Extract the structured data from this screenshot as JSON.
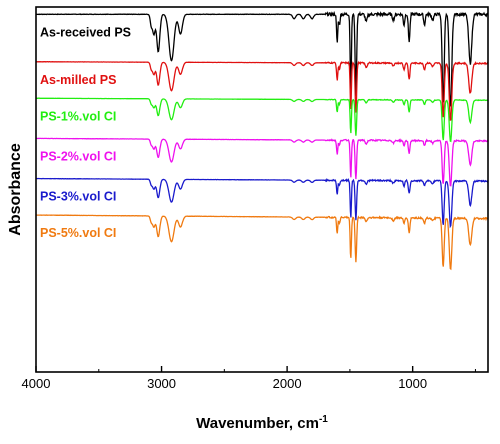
{
  "chart_data": {
    "type": "line",
    "xlabel": "Wavenumber, cm",
    "xlabel_superscript": "-1",
    "ylabel": "Absorbance",
    "xlim": [
      4000,
      400
    ],
    "x_reversed": true,
    "ylim": [
      0,
      1
    ],
    "yticks_shown": false,
    "grid": false,
    "x_ticks": [
      4000,
      3000,
      2000,
      1000
    ],
    "peaks": [
      {
        "x": 3082,
        "depth": 0.12,
        "width": 8
      },
      {
        "x": 3061,
        "depth": 0.22,
        "width": 10
      },
      {
        "x": 3026,
        "depth": 0.42,
        "width": 12
      },
      {
        "x": 2921,
        "depth": 0.52,
        "width": 20
      },
      {
        "x": 2849,
        "depth": 0.22,
        "width": 15
      },
      {
        "x": 1944,
        "depth": 0.05,
        "width": 12
      },
      {
        "x": 1871,
        "depth": 0.05,
        "width": 12
      },
      {
        "x": 1801,
        "depth": 0.05,
        "width": 12
      },
      {
        "x": 1601,
        "depth": 0.32,
        "width": 5
      },
      {
        "x": 1583,
        "depth": 0.12,
        "width": 5
      },
      {
        "x": 1493,
        "depth": 0.85,
        "width": 5
      },
      {
        "x": 1452,
        "depth": 0.9,
        "width": 6
      },
      {
        "x": 1370,
        "depth": 0.08,
        "width": 8
      },
      {
        "x": 1154,
        "depth": 0.06,
        "width": 8
      },
      {
        "x": 1069,
        "depth": 0.12,
        "width": 6
      },
      {
        "x": 1028,
        "depth": 0.3,
        "width": 6
      },
      {
        "x": 906,
        "depth": 0.12,
        "width": 6
      },
      {
        "x": 841,
        "depth": 0.06,
        "width": 8
      },
      {
        "x": 757,
        "depth": 1.0,
        "width": 8
      },
      {
        "x": 698,
        "depth": 1.05,
        "width": 10
      },
      {
        "x": 541,
        "depth": 0.55,
        "width": 12
      }
    ],
    "series": [
      {
        "name": "As-received PS",
        "color": "#000000",
        "offset": 0.98,
        "scale": 0.245,
        "baseline_drop": 0.0,
        "peak_scale": 1.0,
        "tail": 0.02,
        "noise": 0.004
      },
      {
        "name": "As-milled PS",
        "color": "#e01010",
        "offset": 0.85,
        "scale": 0.15,
        "baseline_drop": 0.03,
        "peak_scale": 1.0,
        "tail": 0.03,
        "noise": 0.003
      },
      {
        "name": "PS-1%.vol CI",
        "color": "#22ee11",
        "offset": 0.75,
        "scale": 0.11,
        "baseline_drop": 0.05,
        "peak_scale": 1.0,
        "tail": 0.05,
        "noise": 0.002
      },
      {
        "name": "PS-2%.vol CI",
        "color": "#ee11ee",
        "offset": 0.64,
        "scale": 0.12,
        "baseline_drop": 0.06,
        "peak_scale": 1.0,
        "tail": 0.05,
        "noise": 0.004
      },
      {
        "name": "PS-3%.vol CI",
        "color": "#1a1acc",
        "offset": 0.53,
        "scale": 0.12,
        "baseline_drop": 0.06,
        "peak_scale": 1.0,
        "tail": 0.05,
        "noise": 0.004
      },
      {
        "name": "PS-5%.vol CI",
        "color": "#f07a10",
        "offset": 0.43,
        "scale": 0.135,
        "baseline_drop": 0.07,
        "peak_scale": 1.0,
        "tail": 0.05,
        "noise": 0.004
      }
    ]
  }
}
